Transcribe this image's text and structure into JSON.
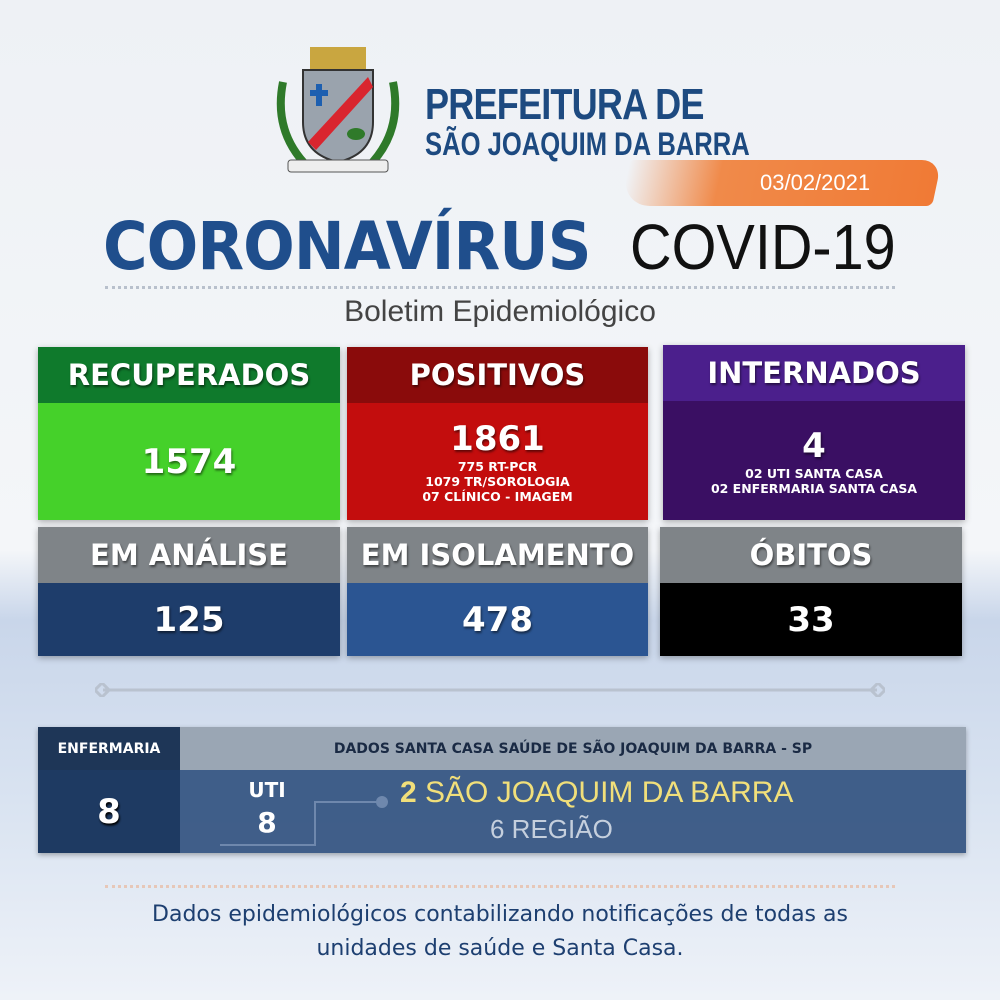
{
  "header": {
    "logo_name": "coat-of-arms-logo",
    "title_line1": "PREFEITURA DE",
    "title_line2": "SÃO JOAQUIM DA BARRA",
    "date": "03/02/2021"
  },
  "title": {
    "main": "CORONAVÍRUS",
    "secondary": "COVID-19",
    "subtitle": "Boletim Epidemiológico"
  },
  "cards": [
    {
      "label": "RECUPERADOS",
      "value": "1574",
      "details": [],
      "header_color": "#0f7a2c",
      "body_color": "#45d12a"
    },
    {
      "label": "POSITIVOS",
      "value": "1861",
      "details": [
        "775 RT-PCR",
        "1079 TR/SOROLOGIA",
        "07 CLÍNICO - IMAGEM"
      ],
      "header_color": "#8a0b0b",
      "body_color": "#c30d0d"
    },
    {
      "label": "INTERNADOS",
      "value": "4",
      "details": [
        "02 UTI SANTA CASA",
        "02 ENFERMARIA SANTA CASA"
      ],
      "header_color": "#4b1f8c",
      "body_color": "#3a0f63"
    },
    {
      "label": "EM ANÁLISE",
      "value": "125",
      "details": [],
      "header_color": "#7f8488",
      "body_color": "#1e3d6b"
    },
    {
      "label": "EM ISOLAMENTO",
      "value": "478",
      "details": [],
      "header_color": "#7f8488",
      "body_color": "#2b5592"
    },
    {
      "label": "ÓBITOS",
      "value": "33",
      "details": [],
      "header_color": "#7f8488",
      "body_color": "#000000"
    }
  ],
  "santa_casa": {
    "enfermaria_label": "ENFERMARIA",
    "enfermaria_value": "8",
    "header": "DADOS SANTA CASA SAÚDE DE SÃO JOAQUIM DA BARRA - SP",
    "uti_label": "UTI",
    "uti_value": "8",
    "local_count": "2",
    "local_label": "SÃO JOAQUIM DA BARRA",
    "region_label": "6 REGIÃO"
  },
  "footer": {
    "line1": "Dados epidemiológicos contabilizando notificações de todas as",
    "line2": "unidades de saúde e Santa Casa."
  }
}
